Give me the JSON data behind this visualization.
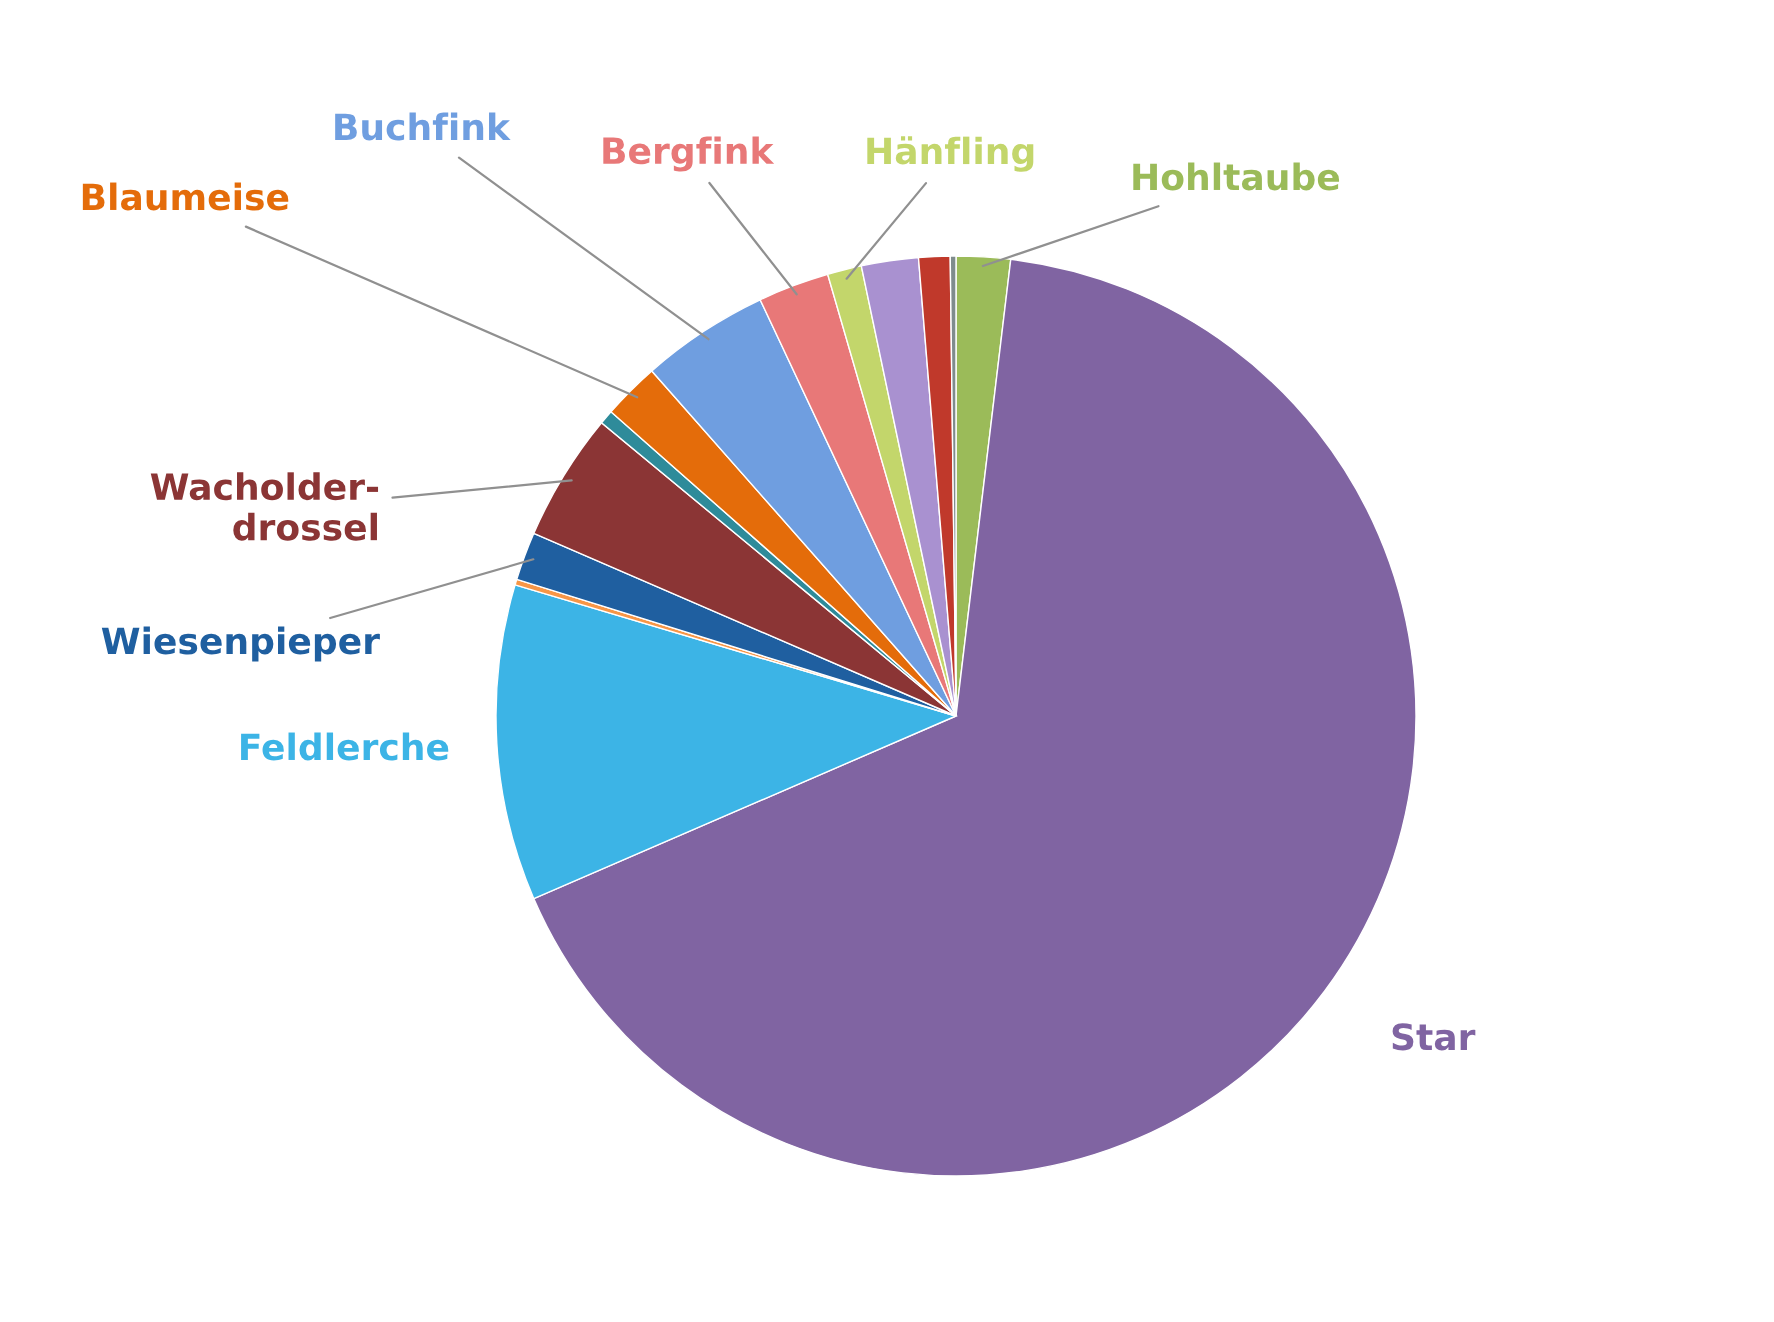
{
  "chart_data": {
    "type": "pie",
    "categories": [
      "Hohltaube",
      "Star",
      "Feldlerche",
      null,
      "Wiesenpieper",
      "Wacholder-\ndrossel",
      null,
      "Blaumeise",
      "Buchfink",
      "Bergfink",
      "Hänfling",
      null,
      null,
      null
    ],
    "values": [
      1.9,
      66.6,
      11.1,
      0.2,
      1.7,
      4.5,
      0.5,
      2.0,
      4.5,
      2.5,
      1.2,
      2.0,
      1.1,
      0.2
    ],
    "colors": [
      "#9bbb59",
      "#8064a2",
      "#3cb4e6",
      "#f79646",
      "#1f5fa0",
      "#8b3535",
      "#2e8b9a",
      "#e46c0a",
      "#6f9ee0",
      "#e87878",
      "#c3d66b",
      "#a991d0",
      "#c0392b",
      "#7f8c8d"
    ]
  }
}
